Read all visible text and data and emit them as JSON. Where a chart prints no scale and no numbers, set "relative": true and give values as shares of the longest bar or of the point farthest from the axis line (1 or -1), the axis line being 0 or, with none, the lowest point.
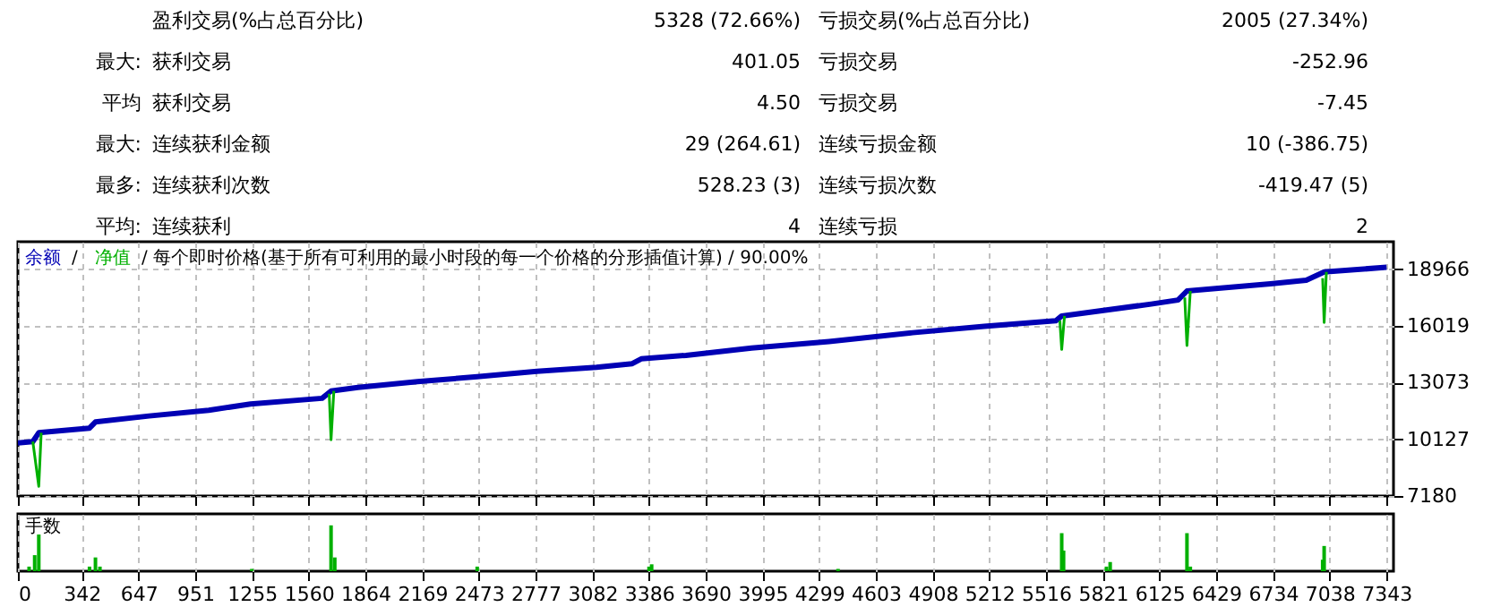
{
  "chart_data": [
    {
      "type": "line",
      "xlim": [
        0,
        7380
      ],
      "xticks": [
        0,
        342,
        647,
        951,
        1255,
        1560,
        1864,
        2169,
        2473,
        2777,
        3082,
        3386,
        3690,
        3995,
        4299,
        4603,
        4908,
        5212,
        5516,
        5821,
        6125,
        6429,
        6734,
        7038,
        7343
      ],
      "ylim": [
        7180,
        20400
      ],
      "yticks": [
        7180,
        10127,
        13073,
        16019,
        18966
      ],
      "grid": true,
      "tick_labels": "y",
      "legend": "top left",
      "annotations": [
        "盈利交易(%占总百分比)",
        "5328 (72.66%)",
        "亏损交易(%占总百分比)",
        "2005 (27.34%)",
        "最大:",
        "获利交易",
        "401.05",
        "亏损交易",
        "-252.96",
        "平均",
        "获利交易",
        "4.50",
        "亏损交易",
        "-7.45",
        "最大:",
        "连续获利金额",
        "29 (264.61)",
        "连续亏损金额",
        "10 (-386.75)",
        "最多:",
        "连续获利次数",
        "528.23 (3)",
        "连续亏损次数",
        "-419.47 (5)",
        "平均:",
        "连续获利",
        "4",
        "连续亏损",
        "2",
        "/",
        "/ 每个即时价格(基于所有可利用的最小时段的每一个价格的分形插值计算) / 90.00%"
      ],
      "series": [
        {
          "name": "余额",
          "color": "#0000b4",
          "x": [
            0,
            80,
            112,
            384,
            416,
            704,
            1024,
            1248,
            1632,
            1680,
            1824,
            2144,
            2464,
            2784,
            3104,
            3296,
            3344,
            3584,
            3936,
            4352,
            4800,
            5184,
            5568,
            5600,
            6080,
            6224,
            6272,
            6720,
            6912,
            7008,
            7343
          ],
          "values": [
            9940,
            10010,
            10470,
            10710,
            11030,
            11340,
            11640,
            11960,
            12260,
            12640,
            12820,
            13130,
            13380,
            13660,
            13870,
            14060,
            14310,
            14490,
            14870,
            15210,
            15670,
            16000,
            16290,
            16540,
            17160,
            17370,
            17840,
            18210,
            18400,
            18830,
            19070
          ]
        },
        {
          "name": "净值",
          "color": "#00b000",
          "x": [
            80,
            112,
            125,
            140,
            1670,
            1680,
            1695,
            1710,
            5590,
            5600,
            5615,
            5630,
            6260,
            6272,
            6290,
            6300,
            7000,
            7008,
            7020
          ],
          "values": [
            10010,
            7680,
            10470,
            null,
            12500,
            10100,
            12640,
            null,
            16300,
            14800,
            16540,
            null,
            17500,
            15000,
            17840,
            null,
            18500,
            16200,
            18830
          ]
        }
      ]
    },
    {
      "type": "bar",
      "relative": true,
      "ylabel": "手数",
      "xlim": [
        0,
        7380
      ],
      "xticks": [
        0,
        342,
        647,
        951,
        1255,
        1560,
        1864,
        2169,
        2473,
        2777,
        3082,
        3386,
        3690,
        3995,
        4299,
        4603,
        4908,
        5212,
        5516,
        5821,
        6125,
        6429,
        6734,
        7038,
        7343
      ],
      "grid": "x",
      "tick_labels": "x",
      "series": [
        {
          "color": "#00b000",
          "x": [
            60,
            90,
            112,
            384,
            416,
            440,
            1255,
            1680,
            1700,
            2464,
            3386,
            3400,
            4400,
            5600,
            5610,
            5840,
            5860,
            6272,
            6290,
            7000,
            7008
          ],
          "values": [
            0.1,
            0.35,
            0.8,
            0.1,
            0.3,
            0.1,
            0.05,
            1,
            0.3,
            0.1,
            0.1,
            0.15,
            0.05,
            0.83,
            0.45,
            0.1,
            0.2,
            0.83,
            0.1,
            0.25,
            0.55
          ]
        }
      ]
    }
  ]
}
